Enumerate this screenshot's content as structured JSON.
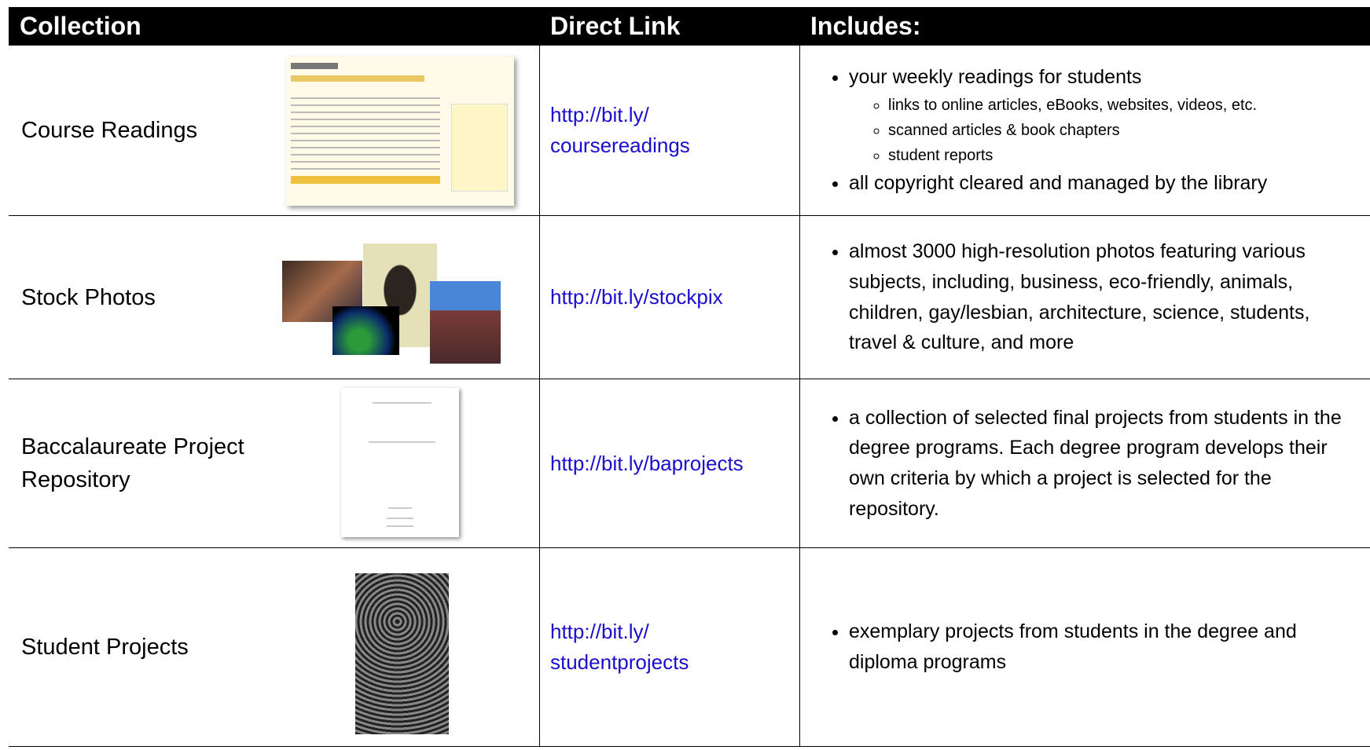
{
  "table": {
    "header": [
      "Collection",
      "Direct Link",
      "Includes:"
    ],
    "rows": [
      {
        "collection": "Course Readings",
        "link": [
          "http://bit.ly/",
          "coursereadings"
        ],
        "includes": [
          {
            "text": "your weekly readings for students",
            "sub": [
              "links to online articles, eBooks, websites, videos, etc.",
              "scanned articles & book chapters",
              "student reports"
            ]
          },
          {
            "text": "all copyright cleared and managed by the library"
          }
        ]
      },
      {
        "collection": "Stock Photos",
        "link": [
          "http://bit.ly/stockpix"
        ],
        "includes": [
          {
            "text": "almost 3000 high-resolution photos featuring various subjects, including, business, eco-friendly, animals, children, gay/lesbian, architecture, science, students, travel & culture, and more"
          }
        ]
      },
      {
        "collection": "Baccalaureate Project Repository",
        "link": [
          "http://bit.ly/baprojects"
        ],
        "includes": [
          {
            "text": "a collection of selected final projects from students in the degree programs. Each degree program develops their own criteria by which a project is selected for the repository."
          }
        ]
      },
      {
        "collection": "Student Projects",
        "link": [
          "http://bit.ly/",
          "studentprojects"
        ],
        "includes": [
          {
            "text": "exemplary projects from students in the degree and diploma programs"
          }
        ]
      }
    ]
  }
}
